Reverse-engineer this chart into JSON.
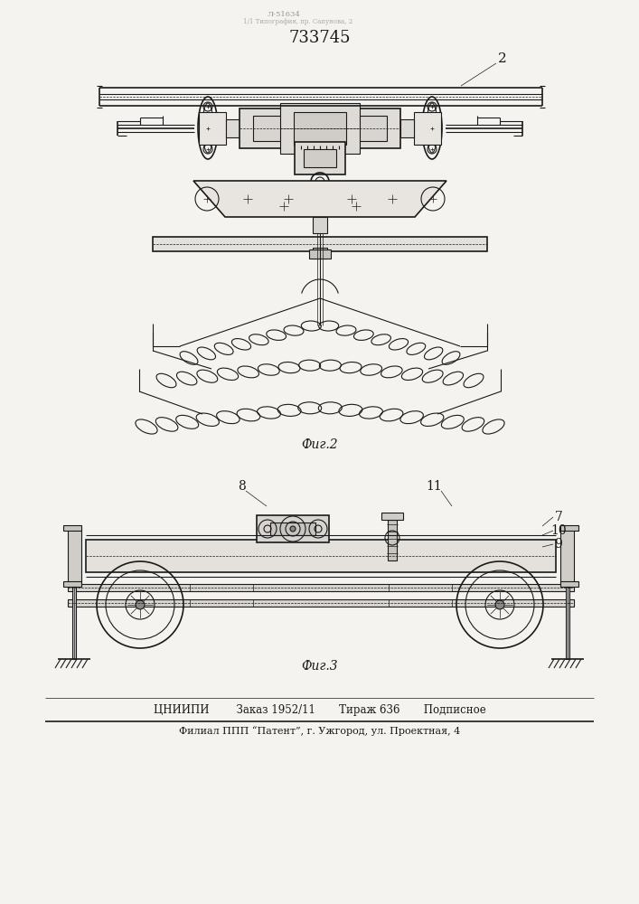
{
  "title_number": "733745",
  "label_2": "2",
  "fig2_label": "Фиг.2",
  "fig3_label": "Фиг.3",
  "footer_line1": "ЦНИИПИ        Заказ 1952/11       Тираж 636       Подписное",
  "footer_line2": "Филиал ППП “Патент”, г. Ужгород, ул. Проектная, 4",
  "bg_color": "#f5f3ef",
  "line_color": "#1a1a1a",
  "fig_width": 7.07,
  "fig_height": 10.0
}
